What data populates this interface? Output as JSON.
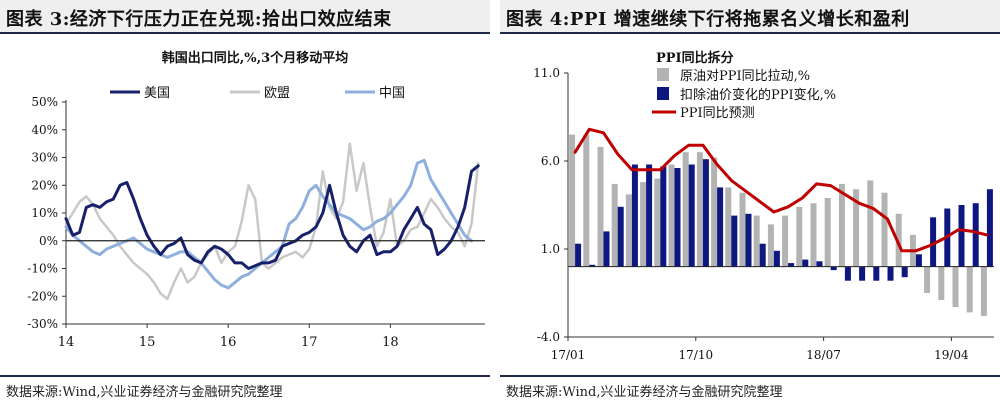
{
  "left": {
    "figure_title": "图表 3:经济下行压力正在兑现:拾出口效应结束",
    "source": "数据来源:Wind,兴业证券经济与金融研究院整理",
    "chart_data": {
      "type": "line",
      "title": "韩国出口同比,%,3个月移动平均",
      "ylim": [
        -30,
        50
      ],
      "yticks": [
        -30,
        -20,
        -10,
        0,
        10,
        20,
        30,
        40,
        50
      ],
      "ytick_labels": [
        "-30%",
        "-20%",
        "-10%",
        "0%",
        "10%",
        "20%",
        "30%",
        "40%",
        "50%"
      ],
      "xlim": [
        0,
        62
      ],
      "xticks": [
        0,
        12,
        24,
        36,
        48
      ],
      "xtick_labels": [
        "14",
        "15",
        "16",
        "17",
        "18"
      ],
      "legend_position": "top",
      "colors": {
        "美国": "#16206b",
        "欧盟": "#c8c8c8",
        "中国": "#8fb0dc",
        "zero": "#222222"
      },
      "series": [
        {
          "name": "美国",
          "values": [
            8,
            2,
            3,
            12,
            13,
            12,
            14,
            15,
            20,
            21,
            15,
            8,
            2,
            -2,
            -5,
            -2,
            -1,
            1,
            -5,
            -7,
            -8,
            -4,
            -2,
            -3,
            -5,
            -8,
            -8,
            -10,
            -9,
            -8,
            -8,
            -7,
            -2,
            -1,
            0,
            2,
            3,
            5,
            10,
            20,
            10,
            2,
            -2,
            -4,
            0,
            2,
            -5,
            -4,
            -4,
            -2,
            4,
            8,
            12,
            6,
            4,
            -5,
            -3,
            0,
            5,
            12,
            25,
            27
          ]
        },
        {
          "name": "欧盟",
          "values": [
            6,
            10,
            14,
            16,
            13,
            8,
            5,
            2,
            -2,
            -5,
            -8,
            -10,
            -12,
            -15,
            -19,
            -21,
            -15,
            -10,
            -15,
            -13,
            -8,
            -5,
            -2,
            -8,
            -4,
            -2,
            7,
            20,
            15,
            -8,
            -10,
            -8,
            -6,
            -5,
            -4,
            -6,
            -3,
            5,
            25,
            12,
            8,
            14,
            35,
            18,
            28,
            12,
            -2,
            3,
            15,
            -2,
            0,
            4,
            5,
            10,
            15,
            12,
            8,
            5,
            3,
            -2,
            6,
            28
          ]
        },
        {
          "name": "中国",
          "values": [
            5,
            2,
            0,
            -2,
            -4,
            -5,
            -3,
            -2,
            -1,
            0,
            1,
            -1,
            -3,
            -4,
            -5,
            -6,
            -5,
            -4,
            -4,
            -6,
            -8,
            -11,
            -14,
            -16,
            -17,
            -15,
            -13,
            -12,
            -10,
            -8,
            -6,
            -4,
            -2,
            6,
            8,
            12,
            18,
            20,
            16,
            13,
            10,
            9,
            8,
            6,
            4,
            5,
            7,
            8,
            10,
            13,
            16,
            20,
            28,
            29,
            22,
            18,
            14,
            10,
            6,
            2,
            0
          ]
        }
      ]
    }
  },
  "right": {
    "figure_title": "图表 4:PPI 增速继续下行将拖累名义增长和盈利",
    "source": "数据来源:Wind,兴业证券经济与金融研究院整理",
    "chart_data": {
      "type": "bar",
      "title": "PPI同比拆分",
      "ylim": [
        -4,
        11
      ],
      "yticks": [
        -4,
        1,
        6,
        11
      ],
      "ytick_labels": [
        "-4.0",
        "1.0",
        "6.0",
        "11.0"
      ],
      "categories": [
        "17/01",
        "17/02",
        "17/03",
        "17/04",
        "17/05",
        "17/06",
        "17/07",
        "17/08",
        "17/09",
        "17/10",
        "17/11",
        "17/12",
        "18/01",
        "18/02",
        "18/03",
        "18/04",
        "18/05",
        "18/06",
        "18/07",
        "18/08",
        "18/09",
        "18/10",
        "18/11",
        "18/12",
        "19/01",
        "19/02",
        "19/03",
        "19/04",
        "19/05",
        "19/06"
      ],
      "xtick_labels": [
        "17/01",
        "17/10",
        "18/07",
        "19/04"
      ],
      "xtick_categories": [
        "17/01",
        "17/10",
        "18/07",
        "19/04"
      ],
      "legend_position": "top-left",
      "colors": {
        "原油对PPI同比拉动,%": "#b3b3b3",
        "扣除油价变化的PPI变化,%": "#0e1780",
        "PPI同比预测": "#c00000",
        "zero": "#222222"
      },
      "series": [
        {
          "name": "原油对PPI同比拉动,%",
          "kind": "bar",
          "values": [
            7.5,
            7.5,
            6.8,
            4.7,
            4.1,
            4.8,
            5.0,
            5.8,
            6.5,
            6.5,
            6.2,
            4.5,
            4.2,
            2.9,
            2.4,
            2.9,
            3.4,
            3.6,
            3.9,
            4.7,
            4.4,
            4.9,
            4.2,
            3.0,
            1.8,
            -1.5,
            -1.9,
            -2.3,
            -2.6,
            -2.8
          ]
        },
        {
          "name": "扣除油价变化的PPI变化,%",
          "kind": "bar",
          "values": [
            1.3,
            0.1,
            2.0,
            3.4,
            5.8,
            5.8,
            5.7,
            5.6,
            5.8,
            6.1,
            4.5,
            2.9,
            3.0,
            1.3,
            0.9,
            0.2,
            0.4,
            0.3,
            -0.2,
            -0.8,
            -0.8,
            -0.8,
            -0.8,
            -0.6,
            0.7,
            2.8,
            3.3,
            3.5,
            3.6,
            4.4
          ]
        },
        {
          "name": "PPI同比预测",
          "kind": "line",
          "values": [
            6.5,
            7.8,
            7.6,
            6.4,
            5.5,
            5.5,
            5.5,
            6.3,
            6.9,
            6.9,
            5.8,
            4.9,
            4.3,
            3.7,
            3.1,
            3.4,
            3.9,
            4.7,
            4.6,
            4.1,
            3.6,
            3.3,
            2.7,
            0.9,
            0.9,
            1.2,
            1.6,
            2.1,
            2.0,
            1.8
          ]
        }
      ]
    }
  }
}
